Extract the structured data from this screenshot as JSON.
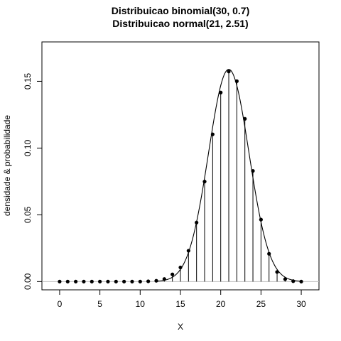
{
  "chart_data": {
    "type": "line",
    "title": "Distribuicao binomial(30, 0.7)",
    "subtitle": "Distribuicao normal(21, 2.51)",
    "xlabel": "X",
    "ylabel": "densidade & probabilidade",
    "xlim": [
      -2.2,
      32.2
    ],
    "ylim": [
      -0.0062,
      0.1795
    ],
    "x_ticks": [
      0,
      5,
      10,
      15,
      20,
      25,
      30
    ],
    "y_ticks": [
      0.0,
      0.05,
      0.1,
      0.15
    ],
    "y_tick_labels": [
      "0.00",
      "0.05",
      "0.10",
      "0.15"
    ],
    "grid": false,
    "reference_line": 0,
    "series": [
      {
        "kind": "probability-mass (points + vertical lines)",
        "x": [
          0,
          1,
          2,
          3,
          4,
          5,
          6,
          7,
          8,
          9,
          10,
          11,
          12,
          13,
          14,
          15,
          16,
          17,
          18,
          19,
          20,
          21,
          22,
          23,
          24,
          25,
          26,
          27,
          28,
          29,
          30
        ],
        "values": [
          0.0,
          0.0,
          0.0,
          0.0,
          0.0,
          0.0,
          0.0,
          0.0,
          0.0,
          0.0,
          0.0,
          0.0002,
          0.0006,
          0.0019,
          0.0054,
          0.0106,
          0.0231,
          0.0442,
          0.0749,
          0.1103,
          0.1416,
          0.1573,
          0.1501,
          0.1219,
          0.0829,
          0.0464,
          0.0208,
          0.0072,
          0.0018,
          0.0003,
          0.0
        ]
      },
      {
        "kind": "density curve",
        "distribution": "normal",
        "mean": 21,
        "sd": 2.51,
        "x_range": [
          12,
          30
        ]
      }
    ]
  }
}
